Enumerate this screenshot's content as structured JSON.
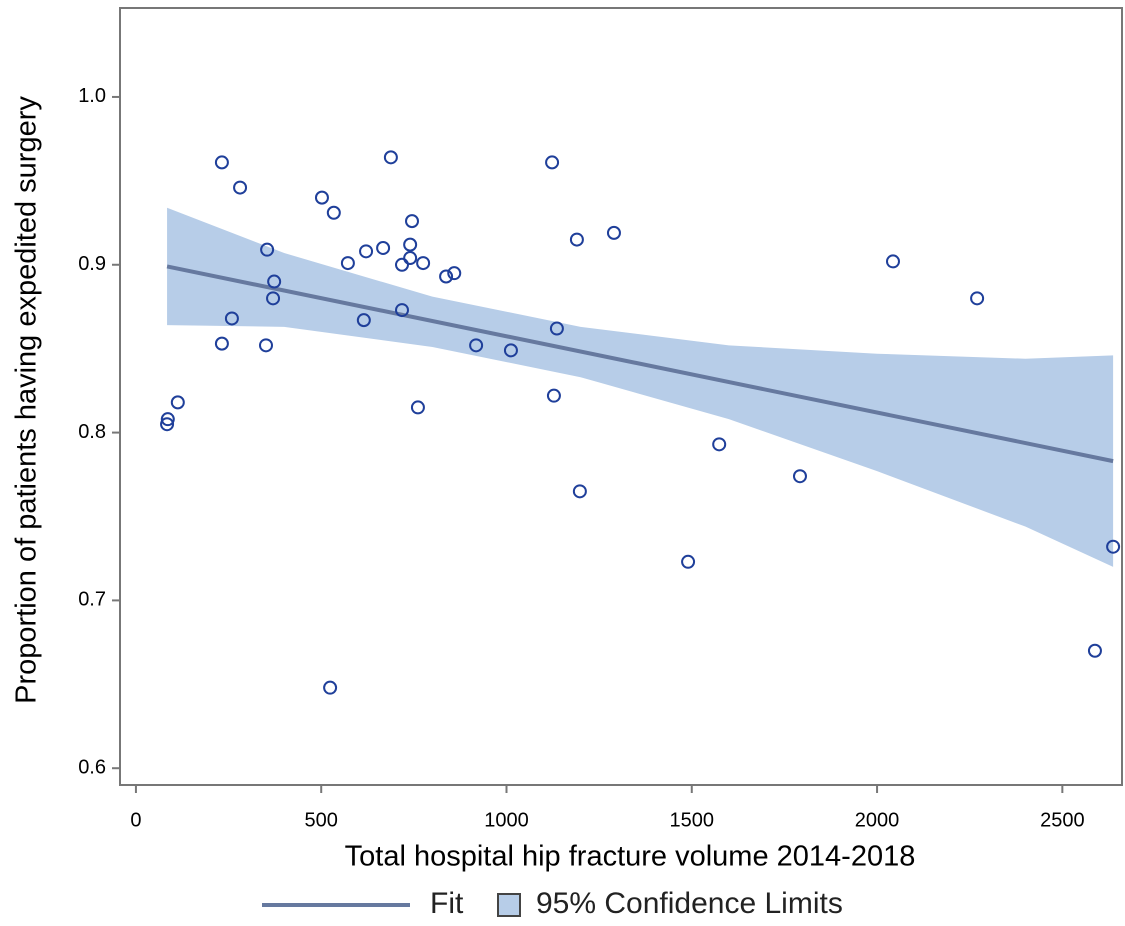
{
  "chart_data": {
    "type": "scatter",
    "x_label": "Total hospital hip fracture volume 2014-2018",
    "y_label": "Proportion of patients having expedited surgery",
    "xlim": [
      -43,
      2661
    ],
    "ylim": [
      0.59,
      1.053
    ],
    "xticks": [
      0,
      500,
      1000,
      1500,
      2000,
      2500
    ],
    "yticks": [
      0.6,
      0.7,
      0.8,
      0.9,
      {
        "value": 1,
        "label": "1.0"
      }
    ],
    "legend": "bottom",
    "points": {
      "color": "#1f3f9a",
      "x": [
        232,
        281,
        688,
        1123,
        502,
        534,
        745,
        354,
        621,
        667,
        740,
        1190,
        1290,
        2043,
        572,
        718,
        740,
        775,
        837,
        859,
        373,
        370,
        2270,
        259,
        718,
        615,
        1136,
        232,
        351,
        918,
        1012,
        113,
        86,
        84,
        761,
        1128,
        1574,
        1792,
        1198,
        1490,
        2637,
        2588,
        524
      ],
      "values": [
        0.961,
        0.946,
        0.964,
        0.961,
        0.94,
        0.931,
        0.926,
        0.909,
        0.908,
        0.91,
        0.912,
        0.915,
        0.919,
        0.902,
        0.901,
        0.9,
        0.904,
        0.901,
        0.893,
        0.895,
        0.89,
        0.88,
        0.88,
        0.868,
        0.873,
        0.867,
        0.862,
        0.853,
        0.852,
        0.852,
        0.849,
        0.818,
        0.808,
        0.805,
        0.815,
        0.822,
        0.793,
        0.774,
        0.765,
        0.723,
        0.732,
        0.67,
        0.648
      ]
    },
    "fit": {
      "name": "Fit",
      "color": "#66799f",
      "x": [
        84,
        2637
      ],
      "values": [
        0.899,
        0.783
      ]
    },
    "band": {
      "name": "95% Confidence Limits",
      "color": "#b7cde8",
      "x": [
        84,
        400,
        800,
        1200,
        1600,
        2000,
        2400,
        2637
      ],
      "upper": [
        0.934,
        0.907,
        0.881,
        0.863,
        0.852,
        0.847,
        0.844,
        0.846
      ],
      "lower": [
        0.864,
        0.863,
        0.851,
        0.833,
        0.808,
        0.777,
        0.744,
        0.72
      ]
    }
  }
}
